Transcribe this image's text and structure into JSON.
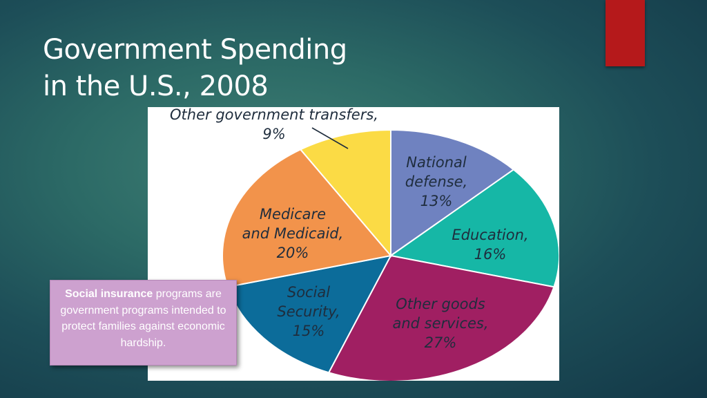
{
  "slide": {
    "title_line1": "Government Spending",
    "title_line2": "in the U.S., 2008",
    "accent_color": "#b5191b"
  },
  "callout": {
    "bold_term": "Social insurance",
    "text": " programs are government programs intended to protect families against economic hardship.",
    "background_color": "#cda1cf"
  },
  "chart_data": {
    "type": "pie",
    "title": "",
    "slices": [
      {
        "name": "National defense",
        "value": 13,
        "label_lines": [
          "National",
          "defense,",
          "13%"
        ],
        "color": "#6f82c0"
      },
      {
        "name": "Education",
        "value": 16,
        "label_lines": [
          "Education,",
          "16%"
        ],
        "color": "#16b7a6"
      },
      {
        "name": "Other goods and services",
        "value": 27,
        "label_lines": [
          "Other goods",
          "and services,",
          "27%"
        ],
        "color": "#a01f62"
      },
      {
        "name": "Social Security",
        "value": 15,
        "label_lines": [
          "Social",
          "Security,",
          "15%"
        ],
        "color": "#0c6c9a"
      },
      {
        "name": "Medicare and Medicaid",
        "value": 20,
        "label_lines": [
          "Medicare",
          "and Medicaid,",
          "20%"
        ],
        "color": "#f2934b"
      },
      {
        "name": "Other government transfers",
        "value": 9,
        "label_lines": [
          "Other government transfers,",
          "9%"
        ],
        "color": "#fbdb45"
      }
    ],
    "legend": "none"
  }
}
